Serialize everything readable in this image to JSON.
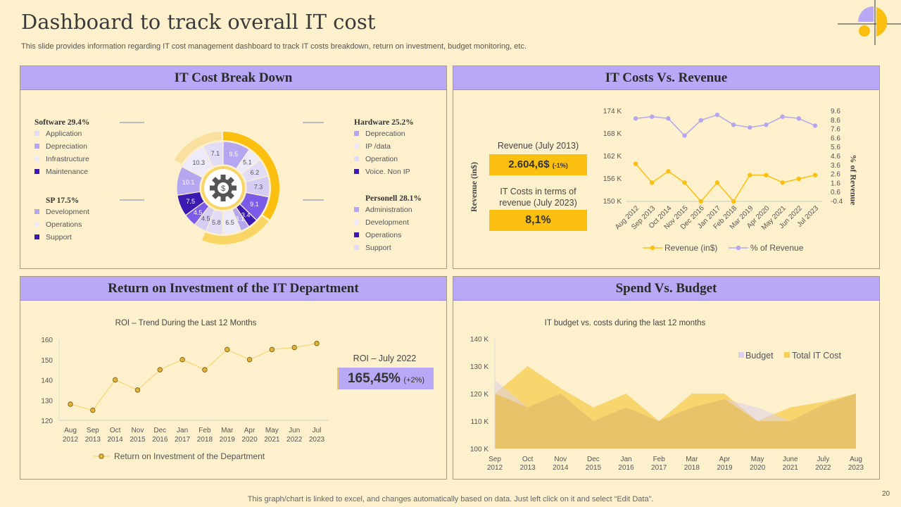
{
  "title": "Dashboard to track overall IT cost",
  "subtitle": "This slide provides information regarding IT cost management dashboard to track IT costs breakdown, return on investment, budget monitoring, etc.",
  "footer": "This graph/chart is linked to excel,  and changes automatically based on data. Just left click on it and select “Edit Data”.",
  "page_number": "20",
  "colors": {
    "background": "#fdf0cc",
    "header": "#b9a8f5",
    "gold": "#fbbf0f",
    "purple": "#b4a7f0",
    "dark_purple": "#3a1ab0"
  },
  "panels": {
    "breakdown": "IT Cost Break Down",
    "revenue": "IT Costs Vs. Revenue",
    "roi": "Return on Investment of the IT Department",
    "spend": "Spend Vs. Budget"
  },
  "breakdown_legend": {
    "software": {
      "title": "Software 29.4%",
      "items": [
        "Application",
        "Depreciation",
        "Infrastructure",
        "Maintenance"
      ]
    },
    "sp": {
      "title": "SP 17.5%",
      "items": [
        "Development",
        "Operations",
        "Support"
      ]
    },
    "hardware": {
      "title": "Hardware  25.2%",
      "items": [
        "Deprecation",
        "IP /data",
        "Operation",
        "Voice. Non IP"
      ]
    },
    "personell": {
      "title": "Personell 28.1%",
      "items": [
        "Administration",
        "Development",
        "Operations",
        "Support"
      ]
    }
  },
  "kpis": {
    "revenue_label": "Revenue  (July 2013)",
    "revenue_value": "2.604,6$",
    "revenue_change": "(-1%)",
    "itcost_label": "IT Costs in terms of revenue  (July 2023)",
    "itcost_value": "8,1%",
    "roi_label": "ROI – July 2022",
    "roi_value": "165,45%",
    "roi_change": "(+2%)"
  },
  "chart_data": [
    {
      "type": "pie",
      "variant": "donut",
      "center_icon": "gear-dollar-icon",
      "values": [
        9.5,
        5.1,
        6.2,
        7.3,
        9.1,
        3.4,
        3.1,
        6.5,
        5.8,
        4.5,
        4.5,
        7.5,
        10.1,
        10.3,
        7.1
      ],
      "labels": [
        "9.5",
        "5.1",
        "6.2",
        "7.3",
        "9.1",
        "3.4",
        "3.1",
        "6.5",
        "5.8",
        "4.5",
        "4.5",
        "7.5",
        "10.1",
        "10.3",
        "7.1"
      ],
      "colors": [
        "#b4a7f0",
        "#efeaf9",
        "#e2dcf7",
        "#d6cdf5",
        "#7b5ce8",
        "#3a1ab0",
        "#b4a7f0",
        "#efeaf9",
        "#e2dcf7",
        "#d6cdf5",
        "#7b5ce8",
        "#3a1ab0",
        "#b4a7f0",
        "#efeaf9",
        "#e2dcf7"
      ]
    },
    {
      "type": "line",
      "ylabel": "Revenue  (in$)",
      "y2label": "% of Revenue",
      "categories": [
        "Aug 2012",
        "Sep 2013",
        "Oct 2014",
        "Nov 2015",
        "Dec 2016",
        "Jan 2017",
        "Feb 2018",
        "Mar 2019",
        "Apr 2020",
        "May 2021",
        "Jun 2022",
        "Jul 2023"
      ],
      "yticks": [
        "174 K",
        "168 K",
        "162 K",
        "156 K",
        "150 K"
      ],
      "ylim": [
        150,
        174
      ],
      "y2ticks": [
        "9.6",
        "8.6",
        "7.6",
        "6.6",
        "5.6",
        "4.6",
        "3.6",
        "2.6",
        "1.6",
        "0.6",
        "-0.4"
      ],
      "y2lim": [
        -0.4,
        9.6
      ],
      "legend": "bottom",
      "series": [
        {
          "name": "Revenue (in$)",
          "axis": "left",
          "color": "#fbbf0f",
          "values": [
            160,
            155,
            158,
            155,
            150,
            155,
            150,
            157,
            157,
            155,
            156,
            157
          ]
        },
        {
          "name": "% of Revenue",
          "axis": "right",
          "color": "#b4a7f0",
          "values": [
            8.8,
            9.0,
            8.8,
            6.9,
            8.6,
            9.2,
            8.1,
            7.8,
            8.1,
            9.0,
            8.8,
            8.0
          ]
        }
      ]
    },
    {
      "type": "line",
      "title": "ROI – Trend During the Last 12 Months",
      "categories": [
        [
          "Aug",
          "2012"
        ],
        [
          "Sep",
          "2013"
        ],
        [
          "Oct",
          "2014"
        ],
        [
          "Nov",
          "2015"
        ],
        [
          "Dec",
          "2016"
        ],
        [
          "Jan",
          "2017"
        ],
        [
          "Feb",
          "2018"
        ],
        [
          "Mar",
          "2019"
        ],
        [
          "Apr",
          "2020"
        ],
        [
          "May",
          "2021"
        ],
        [
          "Jun",
          "2022"
        ],
        [
          "Jul",
          "2023"
        ]
      ],
      "yticks": [
        "160",
        "150",
        "140",
        "130",
        "120"
      ],
      "ylim": [
        120,
        160
      ],
      "legend": "bottom",
      "series": [
        {
          "name": "Return on Investment of the Department",
          "color": "#fbbf0f",
          "values": [
            128,
            125,
            140,
            135,
            145,
            150,
            145,
            155,
            150,
            155,
            156,
            158
          ]
        }
      ]
    },
    {
      "type": "area",
      "title": "IT budget vs.  costs during the last 12 months",
      "categories": [
        [
          "Sep",
          "2012"
        ],
        [
          "Oct",
          "2013"
        ],
        [
          "Nov",
          "2014"
        ],
        [
          "Dec",
          "2015"
        ],
        [
          "Jan",
          "2016"
        ],
        [
          "Feb",
          "2017"
        ],
        [
          "Mar",
          "2018"
        ],
        [
          "Apr",
          "2019"
        ],
        [
          "May",
          "2020"
        ],
        [
          "June",
          "2021"
        ],
        [
          "July",
          "2022"
        ],
        [
          "Aug",
          "2023"
        ]
      ],
      "yticks": [
        "140 K",
        "130 K",
        "120 K",
        "110 K",
        "100 K"
      ],
      "ylim": [
        100,
        140
      ],
      "legend": "top-right",
      "series": [
        {
          "name": "Budget",
          "color": "#ddd0e8",
          "values": [
            125,
            115,
            120,
            110,
            115,
            110,
            115,
            118,
            115,
            110,
            116,
            120
          ]
        },
        {
          "name": "Total IT Cost",
          "color": "#f8cf55",
          "values": [
            120,
            130,
            122,
            115,
            120,
            110,
            120,
            120,
            110,
            115,
            117,
            120
          ]
        }
      ]
    }
  ]
}
